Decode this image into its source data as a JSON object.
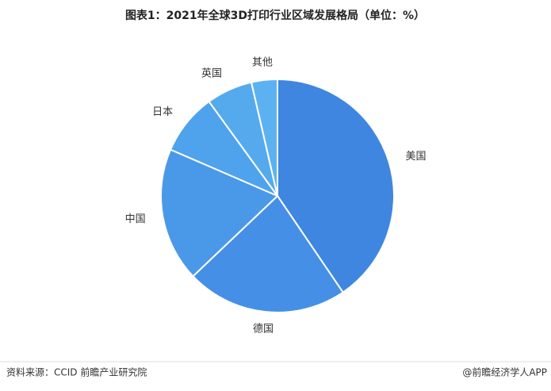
{
  "chart_data": {
    "type": "pie",
    "title": "图表1：2021年全球3D打印行业区域发展格局（单位：%）",
    "categories": [
      "美国",
      "德国",
      "中国",
      "日本",
      "英国",
      "其他"
    ],
    "values": [
      40.5,
      22.4,
      18.6,
      8.5,
      6.4,
      3.6
    ],
    "colors": [
      "#3f86e0",
      "#4590e6",
      "#4a99e9",
      "#4fa2ec",
      "#55aaee",
      "#5cb2f1"
    ],
    "source": "资料来源：CCID 前瞻产业研究院",
    "credit": "@前瞻经济学人APP"
  }
}
